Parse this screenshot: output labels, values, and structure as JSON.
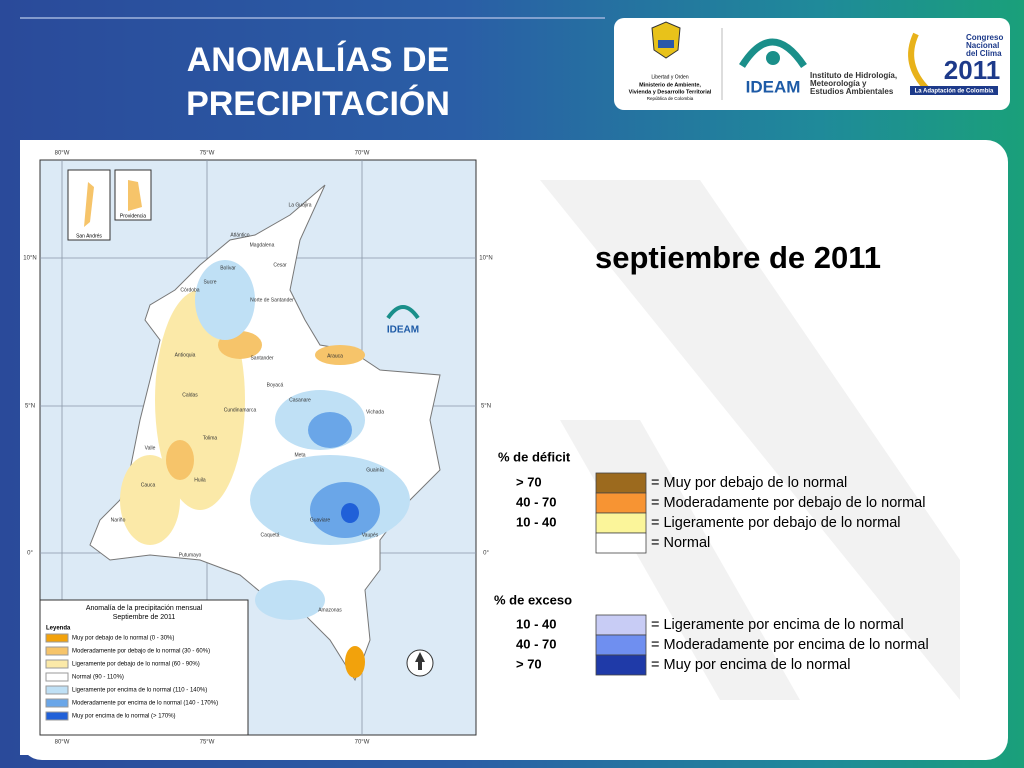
{
  "header": {
    "title_line1": "ANOMALÍAS DE",
    "title_line2": "PRECIPITACIÓN"
  },
  "logos": {
    "ministry_motto": "Libertad y Orden",
    "ministry_line1": "Ministerio de Ambiente,",
    "ministry_line2": "Vivienda y Desarrollo Territorial",
    "ministry_country": "República de Colombia",
    "ideam": "IDEAM",
    "ideam_line1": "Instituto de Hidrología,",
    "ideam_line2": "Meteorología y",
    "ideam_line3": "Estudios Ambientales",
    "congreso_line1": "Congreso",
    "congreso_line2": "Nacional",
    "congreso_line3": "del Clima",
    "congreso_year": "2011",
    "congreso_tagline": "La Adaptación de Colombia"
  },
  "date": "septiembre de 2011",
  "map": {
    "coords": {
      "w80": "80°W",
      "w75": "75°W",
      "w70": "70°W",
      "n10": "10°N",
      "n5": "5°N",
      "eq": "0°"
    },
    "insets": [
      "San Andrés",
      "Providencia"
    ],
    "logo": "IDEAM",
    "departments": [
      "La Guajira",
      "Atlántico",
      "Magdalena",
      "Cesar",
      "Bolívar",
      "Sucre",
      "Córdoba",
      "Norte de Santander",
      "Antioquia",
      "Santander",
      "Arauca",
      "Boyacá",
      "Casanare",
      "Caldas",
      "Cundinamarca",
      "Vichada",
      "Tolima",
      "Meta",
      "Valle",
      "Huila",
      "Guainía",
      "Cauca",
      "Guaviare",
      "Nariño",
      "Caquetá",
      "Vaupés",
      "Putumayo",
      "Amazonas"
    ],
    "legend": {
      "title": "Anomalía de la precipitación mensual",
      "subtitle": "Septiembre de 2011",
      "heading": "Leyenda",
      "items": [
        {
          "label": "Muy por debajo de lo normal (0 - 30%)",
          "color": "#f2a20c"
        },
        {
          "label": "Moderadamente por debajo de lo normal (30 - 60%)",
          "color": "#f6c46a"
        },
        {
          "label": "Ligeramente por debajo de lo normal (60 - 90%)",
          "color": "#fbe9a8"
        },
        {
          "label": "Normal (90 - 110%)",
          "color": "#ffffff"
        },
        {
          "label": "Ligeramente por encima de lo normal (110 - 140%)",
          "color": "#bfe0f5"
        },
        {
          "label": "Moderadamente por encima de lo normal (140 - 170%)",
          "color": "#6aa6e8"
        },
        {
          "label": "Muy por encima de lo normal (> 170%)",
          "color": "#2060d8"
        }
      ]
    }
  },
  "legend": {
    "deficit": {
      "title": "% de déficit",
      "rows": [
        {
          "range": "> 70",
          "label": "= Muy por debajo de lo normal",
          "color": "#9c6a1e"
        },
        {
          "range": "40 -  70",
          "label": "= Moderadamente por debajo de lo normal",
          "color": "#f79433"
        },
        {
          "range": "10 -  40",
          "label": "= Ligeramente por debajo de lo normal",
          "color": "#fbf59a"
        },
        {
          "label": "= Normal",
          "color": "#ffffff"
        }
      ]
    },
    "exceso": {
      "title": "% de exceso",
      "rows": [
        {
          "range": "10 -  40",
          "label": "= Ligeramente por encima de lo normal",
          "color": "#c8ccf5"
        },
        {
          "range": "40 -  70",
          "label": "= Moderadamente por encima de lo normal",
          "color": "#6f8ff0"
        },
        {
          "range": "> 70",
          "label": "= Muy por encima de lo normal",
          "color": "#1f3aa8"
        }
      ]
    }
  }
}
